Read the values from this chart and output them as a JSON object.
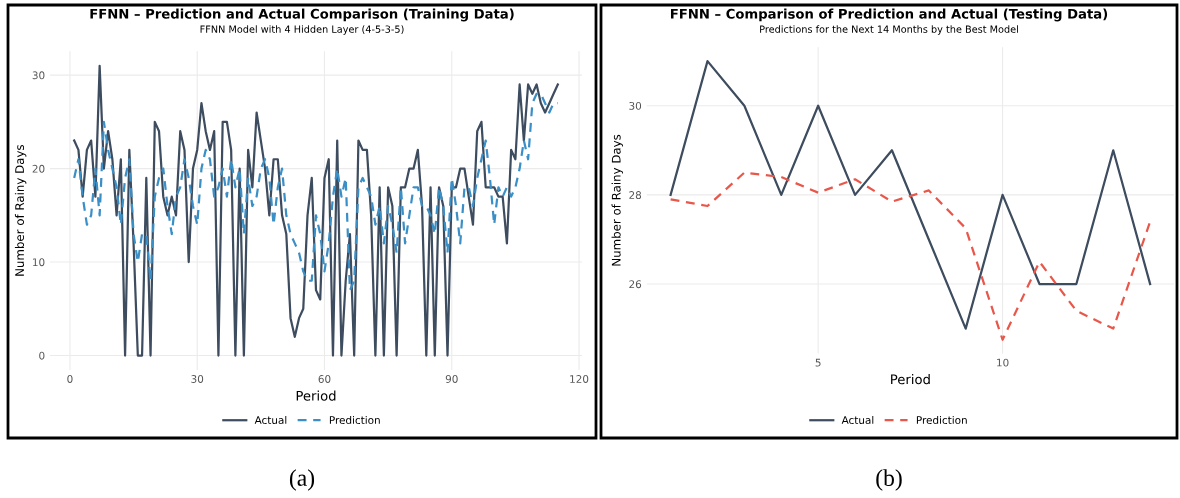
{
  "chart_data": [
    {
      "type": "line",
      "title": "FFNN – Prediction and Actual Comparison (Training Data)",
      "subtitle": "FFNN Model with 4 Hidden Layer (4-5-3-5)",
      "xlabel": "Period",
      "ylabel": "Number of Rainy Days",
      "annotations": [
        "(a)"
      ],
      "x": [
        1,
        2,
        3,
        4,
        5,
        6,
        7,
        8,
        9,
        10,
        11,
        12,
        13,
        14,
        15,
        16,
        17,
        18,
        19,
        20,
        21,
        22,
        23,
        24,
        25,
        26,
        27,
        28,
        29,
        30,
        31,
        32,
        33,
        34,
        35,
        36,
        37,
        38,
        39,
        40,
        41,
        42,
        43,
        44,
        45,
        46,
        47,
        48,
        49,
        50,
        51,
        52,
        53,
        54,
        55,
        56,
        57,
        58,
        59,
        60,
        61,
        62,
        63,
        64,
        65,
        66,
        67,
        68,
        69,
        70,
        71,
        72,
        73,
        74,
        75,
        76,
        77,
        78,
        79,
        80,
        81,
        82,
        83,
        84,
        85,
        86,
        87,
        88,
        89,
        90,
        91,
        92,
        93,
        94,
        95,
        96,
        97,
        98,
        99,
        100,
        101,
        102,
        103,
        104,
        105,
        106,
        107,
        108,
        109,
        110,
        111,
        112,
        113,
        114,
        115
      ],
      "series": [
        {
          "name": "Actual",
          "color": "#3d4c5e",
          "line_style": "solid",
          "values": [
            23,
            22,
            17,
            22,
            23,
            17,
            31,
            20,
            24,
            21,
            15,
            21,
            0,
            22,
            12,
            0,
            0,
            19,
            0,
            25,
            24,
            17,
            15,
            17,
            15,
            24,
            22,
            10,
            20,
            22,
            27,
            24,
            22,
            24,
            0,
            25,
            25,
            22,
            0,
            20,
            0,
            22,
            18,
            26,
            23,
            20,
            15,
            21,
            21,
            15,
            13,
            4,
            2,
            4,
            5,
            15,
            19,
            7,
            6,
            19,
            21,
            0,
            23,
            0,
            8,
            13,
            0,
            23,
            22,
            22,
            15,
            0,
            18,
            0,
            18,
            16,
            0,
            18,
            18,
            20,
            20,
            22,
            16,
            0,
            18,
            0,
            18,
            16,
            0,
            18,
            18,
            20,
            20,
            17,
            14,
            24,
            25,
            18,
            18,
            18,
            17,
            17,
            12,
            22,
            21,
            29,
            23,
            29,
            28,
            29,
            27,
            26,
            27,
            28,
            29
          ]
        },
        {
          "name": "Prediction",
          "color": "#3a8fc7",
          "line_style": "dashed",
          "values": [
            19,
            21,
            17,
            14,
            15,
            20,
            15,
            25,
            22,
            20,
            18,
            14,
            19,
            21,
            13,
            10,
            13,
            13,
            8,
            17,
            19,
            20,
            16,
            13,
            17,
            18,
            21,
            19,
            16,
            14,
            20,
            22,
            21,
            17,
            18,
            20,
            17,
            21,
            18,
            20,
            13,
            19,
            16,
            17,
            20,
            21,
            19,
            14,
            18,
            20,
            15,
            13,
            12,
            11,
            9,
            8,
            8,
            15,
            13,
            9,
            12,
            17,
            20,
            17,
            19,
            7,
            8,
            18,
            19,
            18,
            17,
            14,
            16,
            12,
            16,
            14,
            11,
            18,
            12,
            15,
            18,
            18,
            16,
            16,
            15,
            13,
            18,
            16,
            11,
            19,
            16,
            12,
            18,
            18,
            16,
            19,
            21,
            23,
            19,
            14,
            18,
            17,
            18,
            17,
            18,
            20,
            23,
            21,
            27,
            28,
            28,
            27,
            26,
            27,
            27
          ]
        }
      ],
      "xlim": [
        -4.7,
        120.7
      ],
      "xticks": [
        0,
        30,
        60,
        90,
        120
      ],
      "ylim": [
        -1.55,
        32.55
      ],
      "yticks": [
        0,
        10,
        20,
        30
      ],
      "grid": true,
      "legend": "bottom"
    },
    {
      "type": "line",
      "title": "FFNN – Comparison of Prediction and Actual (Testing Data)",
      "subtitle": "Predictions for the Next 14 Months by the Best Model",
      "xlabel": "Period",
      "ylabel": "Number of Rainy Days",
      "annotations": [
        "(b)"
      ],
      "x": [
        1,
        2,
        3,
        4,
        5,
        6,
        7,
        8,
        9,
        10,
        11,
        12,
        13,
        14
      ],
      "series": [
        {
          "name": "Actual",
          "color": "#3d4c5e",
          "line_style": "solid",
          "values": [
            28,
            31,
            30,
            28,
            30,
            28,
            29,
            27,
            25,
            28,
            26,
            26,
            29,
            26
          ]
        },
        {
          "name": "Prediction",
          "color": "#e8574a",
          "line_style": "dashed",
          "values": [
            27.9,
            27.75,
            28.5,
            28.4,
            28.05,
            28.35,
            27.85,
            28.1,
            27.25,
            24.75,
            26.5,
            25.4,
            25,
            27.4
          ]
        }
      ],
      "xlim": [
        0.35,
        14.65
      ],
      "xticks": [
        5,
        10
      ],
      "ylim": [
        24.44,
        31.31
      ],
      "yticks": [
        26,
        28,
        30
      ],
      "grid": true,
      "legend": "bottom"
    }
  ]
}
